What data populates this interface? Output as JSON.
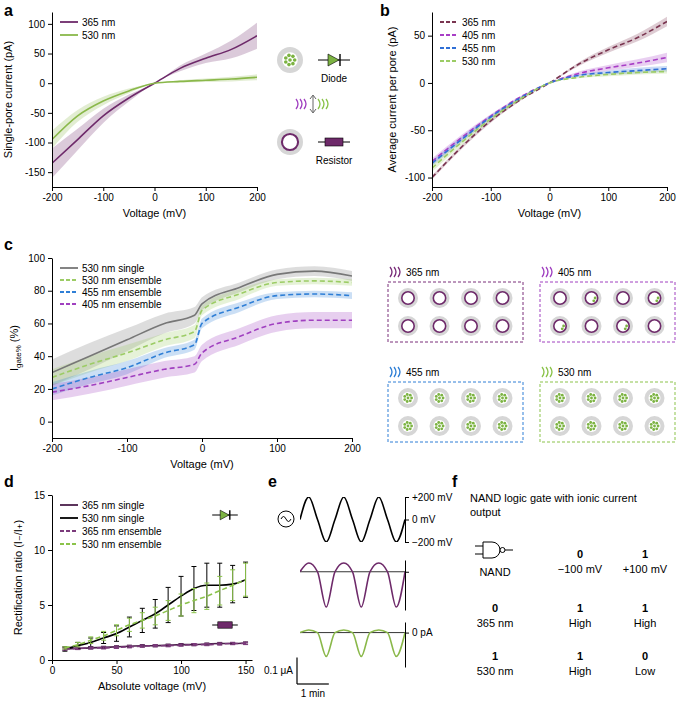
{
  "panel_labels": [
    "a",
    "b",
    "c",
    "d",
    "e",
    "f"
  ],
  "schematic_labels": {
    "diode": "Diode",
    "resistor": "Resistor"
  },
  "pore_arrays": [
    "365 nm",
    "405 nm",
    "455 nm",
    "530 nm"
  ],
  "chart_data": [
    {
      "type": "line",
      "x_label": "Voltage (mV)",
      "y_label": "Single-pore current (pA)",
      "x": [
        -200,
        -150,
        -100,
        -50,
        0,
        50,
        100,
        150,
        200
      ],
      "xlim": [
        -200,
        200
      ],
      "xticks": [
        -200,
        -100,
        0,
        100,
        200
      ],
      "ylim": [
        -175,
        120
      ],
      "yticks": [
        -150,
        -100,
        -50,
        0,
        50,
        100
      ],
      "legend": "top-left",
      "series": [
        {
          "name": "365 nm",
          "color": "#6e2a6a",
          "line_style": "solid",
          "values": [
            -135,
            -95,
            -55,
            -25,
            0,
            25,
            42,
            57,
            80
          ],
          "error": [
            25,
            18,
            12,
            6,
            0,
            5,
            8,
            15,
            22
          ]
        },
        {
          "name": "530 nm",
          "color": "#8ab84a",
          "line_style": "solid",
          "values": [
            -95,
            -55,
            -30,
            -13,
            0,
            3,
            5,
            7,
            10
          ],
          "error": [
            15,
            10,
            7,
            4,
            0,
            2,
            3,
            4,
            5
          ]
        }
      ]
    },
    {
      "type": "line",
      "x_label": "Voltage (mV)",
      "y_label": "Average current per pore (pA)",
      "x": [
        -200,
        -150,
        -100,
        -50,
        0,
        50,
        100,
        150,
        200
      ],
      "xlim": [
        -200,
        200
      ],
      "xticks": [
        -200,
        -100,
        0,
        100,
        200
      ],
      "ylim": [
        -110,
        75
      ],
      "yticks": [
        -100,
        -50,
        0,
        50
      ],
      "legend": "top-left",
      "series": [
        {
          "name": "365 nm",
          "color": "#7a3550",
          "line_style": "dashed",
          "values": [
            -100,
            -68,
            -40,
            -18,
            0,
            20,
            35,
            48,
            65
          ],
          "error": [
            2,
            2,
            2,
            1,
            0,
            2,
            3,
            4,
            5
          ]
        },
        {
          "name": "405 nm",
          "color": "#a83ec6",
          "line_style": "dashed",
          "values": [
            -83,
            -58,
            -35,
            -15,
            0,
            10,
            16,
            21,
            27
          ],
          "error": [
            3,
            3,
            2,
            1,
            0,
            2,
            3,
            4,
            5
          ]
        },
        {
          "name": "455 nm",
          "color": "#2f6fd6",
          "line_style": "dashed",
          "values": [
            -85,
            -60,
            -36,
            -16,
            0,
            8,
            11,
            13,
            15
          ],
          "error": [
            3,
            3,
            2,
            1,
            0,
            1,
            2,
            3,
            3
          ]
        },
        {
          "name": "530 nm",
          "color": "#9ccc65",
          "line_style": "dashed",
          "values": [
            -90,
            -63,
            -38,
            -17,
            0,
            6,
            9,
            11,
            12
          ],
          "error": [
            4,
            3,
            2,
            1,
            0,
            1,
            2,
            2,
            2
          ]
        }
      ]
    },
    {
      "type": "line",
      "x_label": "Voltage (mV)",
      "y_label": [
        "I",
        "gate%",
        " (%)"
      ],
      "x": [
        -200,
        -150,
        -100,
        -50,
        -10,
        0,
        50,
        100,
        150,
        200
      ],
      "xlim": [
        -200,
        200
      ],
      "xticks": [
        -200,
        -100,
        0,
        100,
        200
      ],
      "ylim": [
        -10,
        100
      ],
      "yticks": [
        0,
        20,
        40,
        60,
        80,
        100
      ],
      "legend": "top-left",
      "series": [
        {
          "name": "530 nm single",
          "color": "#777777",
          "line_style": "solid",
          "values": [
            30,
            40,
            50,
            60,
            65,
            72,
            82,
            90,
            92,
            89
          ],
          "error": [
            8,
            8,
            7,
            6,
            5,
            4,
            3,
            3,
            3,
            3
          ]
        },
        {
          "name": "530 nm ensemble",
          "color": "#9ccc65",
          "line_style": "dashed",
          "values": [
            27,
            35,
            42,
            50,
            55,
            68,
            78,
            85,
            86,
            85
          ],
          "error": [
            5,
            5,
            5,
            4,
            4,
            3,
            3,
            2,
            2,
            2
          ]
        },
        {
          "name": "455 nm ensemble",
          "color": "#2f7fd6",
          "line_style": "dashed",
          "values": [
            20,
            27,
            33,
            42,
            47,
            60,
            70,
            77,
            78,
            77
          ],
          "error": [
            4,
            4,
            4,
            3,
            3,
            3,
            3,
            2,
            2,
            2
          ]
        },
        {
          "name": "405 nm ensemble",
          "color": "#a040c0",
          "line_style": "dashed",
          "values": [
            18,
            22,
            27,
            32,
            35,
            42,
            52,
            60,
            62,
            62
          ],
          "error": [
            5,
            5,
            5,
            5,
            5,
            5,
            5,
            5,
            5,
            5
          ]
        }
      ]
    },
    {
      "type": "errorbar",
      "x_label": "Absolute voltage (mV)",
      "y_label": "Rectification ratio (I₋/I₊)",
      "x": [
        10,
        20,
        30,
        40,
        50,
        60,
        70,
        80,
        90,
        100,
        110,
        120,
        130,
        140,
        150
      ],
      "xlim": [
        0,
        155
      ],
      "xticks": [
        0,
        50,
        100,
        150
      ],
      "ylim": [
        0,
        15
      ],
      "yticks": [
        0,
        5,
        10,
        15
      ],
      "legend": "top-left",
      "series": [
        {
          "name": "365 nm single",
          "color": "#4a1f4a",
          "line_style": "solid",
          "values": [
            1.0,
            1.05,
            1.1,
            1.15,
            1.2,
            1.25,
            1.3,
            1.3,
            1.35,
            1.4,
            1.4,
            1.45,
            1.5,
            1.5,
            1.55
          ],
          "error": [
            0.1,
            0.1,
            0.1,
            0.1,
            0.1,
            0.1,
            0.1,
            0.1,
            0.1,
            0.1,
            0.1,
            0.1,
            0.1,
            0.1,
            0.1
          ]
        },
        {
          "name": "530 nm single",
          "color": "#000000",
          "line_style": "solid",
          "values": [
            1.0,
            1.3,
            1.6,
            2.0,
            2.4,
            3.0,
            3.6,
            4.2,
            5.0,
            5.8,
            6.5,
            6.8,
            6.8,
            6.9,
            7.3
          ],
          "error": [
            0.2,
            0.3,
            0.4,
            0.5,
            0.7,
            0.9,
            1.1,
            1.3,
            1.6,
            1.8,
            2.0,
            2.0,
            2.0,
            1.7,
            1.6
          ]
        },
        {
          "name": "365 nm ensemble",
          "color": "#7b3a7b",
          "line_style": "dashed",
          "values": [
            1.0,
            1.05,
            1.1,
            1.1,
            1.15,
            1.2,
            1.25,
            1.3,
            1.3,
            1.35,
            1.4,
            1.4,
            1.45,
            1.5,
            1.5
          ],
          "error": [
            0.1,
            0.1,
            0.1,
            0.1,
            0.1,
            0.1,
            0.1,
            0.1,
            0.1,
            0.1,
            0.1,
            0.1,
            0.1,
            0.1,
            0.1
          ]
        },
        {
          "name": "530 nm ensemble",
          "color": "#8bc34a",
          "line_style": "dashed",
          "values": [
            1.1,
            1.4,
            1.8,
            2.2,
            2.7,
            3.2,
            3.6,
            4.0,
            4.5,
            5.0,
            5.4,
            5.8,
            6.3,
            6.8,
            7.3
          ],
          "error": [
            0.1,
            0.2,
            0.3,
            0.4,
            0.5,
            0.6,
            0.7,
            0.8,
            0.9,
            1.0,
            1.1,
            1.2,
            1.3,
            1.4,
            1.5
          ]
        }
      ]
    },
    {
      "type": "line",
      "x": [
        0,
        16.5,
        33,
        49.5,
        66,
        82.5,
        99,
        115.5,
        132,
        148.5,
        165,
        181.5,
        198
      ],
      "xlim": [
        0,
        198
      ],
      "ylim": [
        -200,
        200
      ],
      "yticks": [
        {
          "value": 200,
          "label": "+200 mV"
        },
        {
          "value": 0,
          "label": "0 mV"
        },
        {
          "value": -200,
          "label": "−200 mV"
        }
      ],
      "tick_labels": "y",
      "series": [
        {
          "color": "#000000",
          "line_style": "solid",
          "values": [
            0,
            200,
            0,
            -200,
            0,
            200,
            0,
            -200,
            0,
            200,
            0,
            -200,
            0
          ]
        }
      ]
    },
    {
      "type": "line",
      "x": [
        0,
        16.5,
        33,
        49.5,
        66,
        82.5,
        99,
        115.5,
        132,
        148.5,
        165,
        181.5,
        198
      ],
      "xlim": [
        0,
        198
      ],
      "ylim": [
        -0.13,
        0.04
      ],
      "yticks": [
        0
      ],
      "grid": true,
      "tick_labels": false,
      "series": [
        {
          "color": "#6e2a6a",
          "line_style": "solid",
          "values": [
            0,
            0.03,
            0,
            -0.12,
            0,
            0.03,
            0,
            -0.12,
            0,
            0.03,
            0,
            -0.12,
            0
          ]
        }
      ]
    },
    {
      "type": "line",
      "x": [
        0,
        16.5,
        33,
        49.5,
        66,
        82.5,
        99,
        115.5,
        132,
        148.5,
        165,
        181.5,
        198
      ],
      "xlim": [
        0,
        198
      ],
      "ylim": [
        -0.13,
        0.04
      ],
      "yticks": [
        {
          "value": 0,
          "label": "0 pA"
        }
      ],
      "grid": true,
      "tick_labels": "y",
      "scale_bar": {
        "x": {
          "value": 60,
          "label": "1 min"
        },
        "y": {
          "value": 0.1,
          "label": "0.1 μA"
        }
      },
      "series": [
        {
          "color": "#8ab84a",
          "line_style": "solid",
          "values": [
            0,
            0.01,
            0,
            -0.09,
            0,
            0.01,
            0,
            -0.09,
            0,
            0.01,
            0,
            -0.09,
            0
          ]
        }
      ]
    }
  ],
  "table": {
    "title": "NAND logic gate with ionic current output",
    "symbol_label": "NAND",
    "columns": [
      [
        "0",
        "−100 mV"
      ],
      [
        "1",
        "+100 mV"
      ]
    ],
    "rows": [
      {
        "header": [
          "0",
          "365 nm"
        ],
        "cells": [
          [
            "1",
            "High"
          ],
          [
            "1",
            "High"
          ]
        ]
      },
      {
        "header": [
          "1",
          "530 nm"
        ],
        "cells": [
          [
            "1",
            "High"
          ],
          [
            "0",
            "Low"
          ]
        ]
      }
    ]
  }
}
